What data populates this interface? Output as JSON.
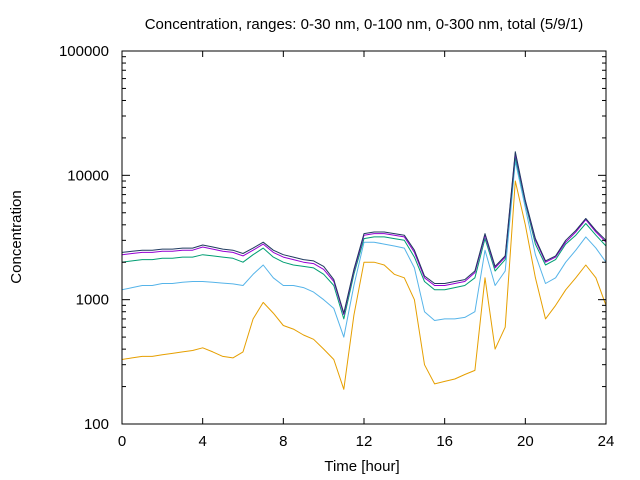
{
  "chart_data": {
    "type": "line",
    "title": "Concentration, ranges: 0-30 nm, 0-100 nm, 0-300 nm, total (5/9/1)",
    "xlabel": "Time [hour]",
    "ylabel": "Concentration",
    "xlim": [
      0,
      24
    ],
    "ylim": [
      100,
      100000
    ],
    "yscale": "log",
    "grid": false,
    "legend": "none",
    "xticks": [
      0,
      4,
      8,
      12,
      16,
      20,
      24
    ],
    "xtick_labels": [
      "0",
      "4",
      "8",
      "12",
      "16",
      "20",
      "24"
    ],
    "yticks": [
      100,
      1000,
      10000,
      100000
    ],
    "ytick_labels": [
      "100",
      "1000",
      "10000",
      "100000"
    ],
    "x": [
      0,
      0.5,
      1,
      1.5,
      2,
      2.5,
      3,
      3.5,
      4,
      4.5,
      5,
      5.5,
      6,
      6.5,
      7,
      7.5,
      8,
      8.5,
      9,
      9.5,
      10,
      10.5,
      11,
      11.5,
      12,
      12.5,
      13,
      13.5,
      14,
      14.5,
      15,
      15.5,
      16,
      16.5,
      17,
      17.5,
      18,
      18.5,
      19,
      19.5,
      20,
      20.5,
      21,
      21.5,
      22,
      22.5,
      23,
      23.5,
      24
    ],
    "series": [
      {
        "color": "#e69f00",
        "values": [
          330,
          340,
          350,
          350,
          360,
          370,
          380,
          390,
          410,
          380,
          350,
          340,
          380,
          700,
          950,
          780,
          620,
          580,
          520,
          480,
          400,
          330,
          190,
          750,
          2000,
          2000,
          1900,
          1600,
          1500,
          1000,
          300,
          210,
          220,
          230,
          250,
          270,
          1500,
          400,
          600,
          9000,
          4000,
          1500,
          700,
          900,
          1200,
          1500,
          1900,
          1500,
          900
        ]
      },
      {
        "color": "#56b4e9",
        "values": [
          1200,
          1250,
          1300,
          1300,
          1350,
          1350,
          1380,
          1400,
          1400,
          1380,
          1360,
          1340,
          1300,
          1600,
          1900,
          1500,
          1300,
          1300,
          1250,
          1150,
          1000,
          850,
          500,
          1300,
          2900,
          2900,
          2800,
          2700,
          2600,
          1800,
          800,
          680,
          700,
          700,
          720,
          800,
          2500,
          1300,
          1700,
          13000,
          5500,
          2300,
          1350,
          1500,
          2000,
          2500,
          3200,
          2600,
          2000
        ]
      },
      {
        "color": "#009e73",
        "values": [
          2000,
          2050,
          2100,
          2100,
          2150,
          2150,
          2200,
          2200,
          2300,
          2250,
          2200,
          2150,
          2000,
          2300,
          2600,
          2200,
          2000,
          1900,
          1850,
          1800,
          1600,
          1300,
          700,
          1600,
          3100,
          3200,
          3200,
          3100,
          3000,
          2200,
          1400,
          1200,
          1200,
          1250,
          1300,
          1500,
          3100,
          1700,
          2100,
          14000,
          6000,
          2800,
          1900,
          2100,
          2800,
          3300,
          4100,
          3300,
          2700
        ]
      },
      {
        "color": "#9400d3",
        "values": [
          2300,
          2350,
          2400,
          2400,
          2450,
          2450,
          2500,
          2500,
          2650,
          2550,
          2450,
          2400,
          2250,
          2500,
          2800,
          2400,
          2200,
          2100,
          2000,
          1950,
          1750,
          1400,
          760,
          1700,
          3300,
          3400,
          3400,
          3300,
          3200,
          2400,
          1500,
          1300,
          1300,
          1350,
          1400,
          1650,
          3300,
          1800,
          2200,
          15000,
          6200,
          3000,
          2000,
          2200,
          2900,
          3500,
          4400,
          3500,
          2900
        ]
      },
      {
        "color": "#1f3a5f",
        "values": [
          2400,
          2450,
          2500,
          2500,
          2550,
          2550,
          2600,
          2600,
          2750,
          2650,
          2550,
          2500,
          2350,
          2600,
          2900,
          2500,
          2300,
          2200,
          2100,
          2050,
          1850,
          1450,
          780,
          1750,
          3400,
          3500,
          3500,
          3400,
          3300,
          2500,
          1550,
          1350,
          1350,
          1400,
          1450,
          1700,
          3400,
          1850,
          2250,
          15500,
          6300,
          3100,
          2050,
          2250,
          3000,
          3600,
          4500,
          3600,
          3000
        ]
      }
    ]
  }
}
